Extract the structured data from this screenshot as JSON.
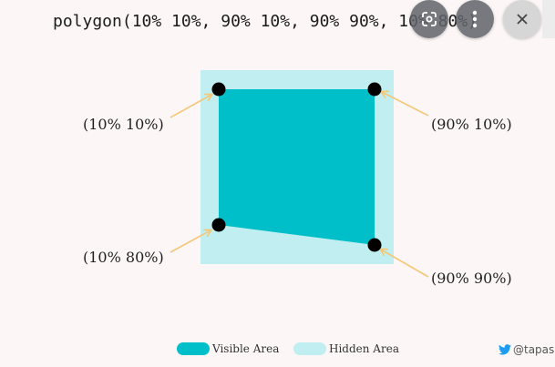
{
  "title": "polygon(10% 10%, 90% 10%, 90% 90%, 10% 80%)",
  "labels": {
    "top_left": "(10% 10%)",
    "top_right": "(90% 10%)",
    "bottom_left": "(10% 80%)",
    "bottom_right": "(90% 90%)"
  },
  "legend": {
    "visible": "Visible Area",
    "hidden": "Hidden Area"
  },
  "credit": "@tapasa",
  "colors": {
    "visible": "#00bfc8",
    "hidden": "#c0eef1",
    "arrow": "#f4c779",
    "point": "#000000",
    "background": "#fcf7f6",
    "twitter": "#1d9bf0"
  },
  "icons": {
    "lens": "google-lens-icon",
    "more": "more-vertical-icon",
    "close": "close-icon",
    "bird": "twitter-bird-icon"
  }
}
